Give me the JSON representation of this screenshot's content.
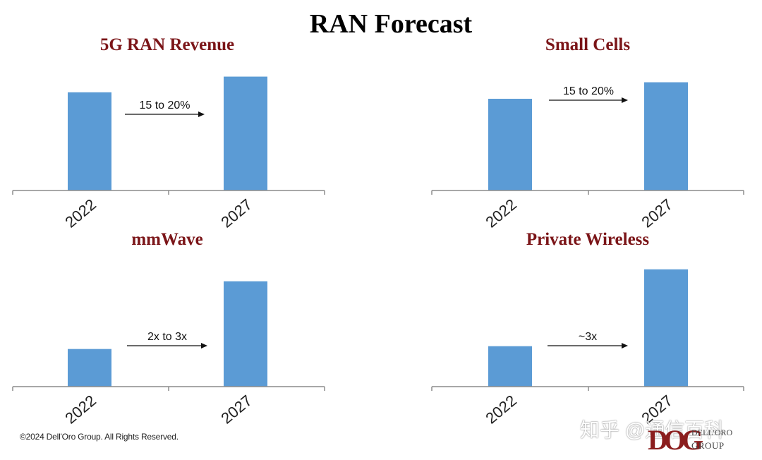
{
  "title": "RAN Forecast",
  "colors": {
    "bar": "#5b9bd5",
    "title_red": "#7b1518",
    "axis": "#888888"
  },
  "chart_data": [
    {
      "type": "bar",
      "title": "5G RAN Revenue",
      "categories": [
        "2022",
        "2027"
      ],
      "values": [
        1.0,
        1.16
      ],
      "annotation": "15 to 20%",
      "ylim": [
        0,
        1.2
      ],
      "grid": false
    },
    {
      "type": "bar",
      "title": "Small Cells",
      "categories": [
        "2022",
        "2027"
      ],
      "values": [
        1.0,
        1.18
      ],
      "annotation": "15 to 20%",
      "ylim": [
        0,
        1.2
      ],
      "grid": false
    },
    {
      "type": "bar",
      "title": "mmWave",
      "categories": [
        "2022",
        "2027"
      ],
      "values": [
        1.0,
        2.8
      ],
      "annotation": "2x to 3x",
      "ylim": [
        0,
        3.0
      ],
      "grid": false
    },
    {
      "type": "bar",
      "title": "Private Wireless",
      "categories": [
        "2022",
        "2027"
      ],
      "values": [
        1.0,
        2.9
      ],
      "annotation": "~3x",
      "ylim": [
        0,
        3.0
      ],
      "grid": false
    }
  ],
  "footer": "©2024 Dell'Oro Group. All Rights Reserved.",
  "watermark": "知乎 @通信百科",
  "logo": {
    "mark": "DOG",
    "name": "DELL'ORO",
    "sub": "GROUP"
  }
}
